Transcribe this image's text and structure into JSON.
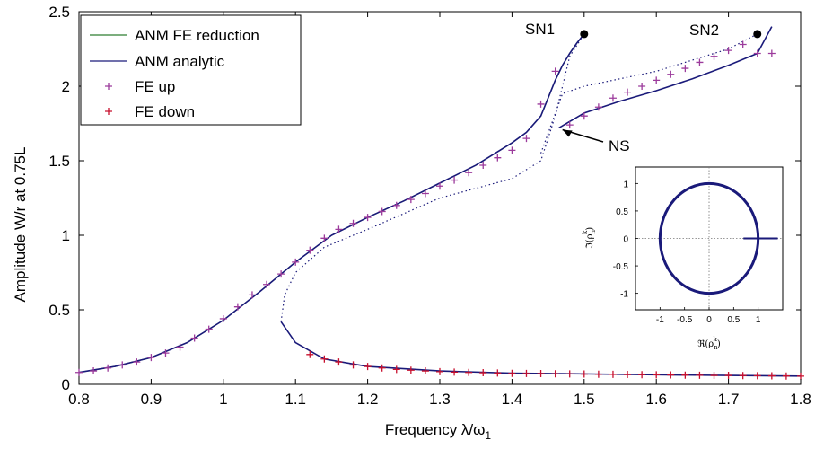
{
  "chart_data": {
    "type": "line",
    "xlabel": "Frequency λ/ω",
    "xlabel_sub": "1",
    "ylabel": "Amplitude W/r at 0.75L",
    "xlim": [
      0.8,
      1.8
    ],
    "ylim": [
      0,
      2.5
    ],
    "x_ticks": [
      "0.8",
      "0.9",
      "1",
      "1.1",
      "1.2",
      "1.3",
      "1.4",
      "1.5",
      "1.6",
      "1.7",
      "1.8"
    ],
    "y_ticks": [
      "0",
      "0.5",
      "1",
      "1.5",
      "2",
      "2.5"
    ],
    "legend_position": "top-left",
    "colors": {
      "fe_reduction": "#2e7d32",
      "analytic": "#1a1a7a",
      "fe_up": "#9c3b9c",
      "fe_down": "#c8102e"
    },
    "series": [
      {
        "name": "ANM FE reduction",
        "style": "solid-line",
        "x": [
          0.8,
          0.85,
          0.9,
          0.95,
          1.0,
          1.05,
          1.1,
          1.15,
          1.2,
          1.25,
          1.3,
          1.35,
          1.4,
          1.42,
          1.44,
          1.45,
          1.46,
          1.47,
          1.48,
          1.49,
          1.5
        ],
        "y": [
          0.08,
          0.12,
          0.18,
          0.28,
          0.43,
          0.62,
          0.82,
          1.0,
          1.12,
          1.23,
          1.35,
          1.47,
          1.62,
          1.69,
          1.8,
          1.92,
          2.04,
          2.14,
          2.22,
          2.29,
          2.35
        ]
      },
      {
        "name": "ANM analytic",
        "style": "solid-line",
        "x": [
          0.8,
          0.85,
          0.9,
          0.95,
          1.0,
          1.05,
          1.1,
          1.15,
          1.2,
          1.25,
          1.3,
          1.35,
          1.4,
          1.42,
          1.44,
          1.45,
          1.46,
          1.47,
          1.48,
          1.49,
          1.5
        ],
        "y": [
          0.08,
          0.12,
          0.18,
          0.28,
          0.43,
          0.62,
          0.82,
          1.0,
          1.12,
          1.23,
          1.35,
          1.47,
          1.62,
          1.69,
          1.8,
          1.92,
          2.04,
          2.14,
          2.22,
          2.29,
          2.35
        ]
      },
      {
        "name": "FE up",
        "style": "plus-marker",
        "x": [
          0.8,
          0.82,
          0.84,
          0.86,
          0.88,
          0.9,
          0.92,
          0.94,
          0.96,
          0.98,
          1.0,
          1.02,
          1.04,
          1.06,
          1.08,
          1.1,
          1.12,
          1.14,
          1.16,
          1.18,
          1.2,
          1.22,
          1.24,
          1.26,
          1.28,
          1.3,
          1.32,
          1.34,
          1.36,
          1.38,
          1.4,
          1.42,
          1.44,
          1.46,
          1.48,
          1.5,
          1.52,
          1.54,
          1.56,
          1.58,
          1.6,
          1.62,
          1.64,
          1.66,
          1.68,
          1.7,
          1.72,
          1.74,
          1.76
        ],
        "y": [
          0.08,
          0.09,
          0.11,
          0.13,
          0.15,
          0.18,
          0.21,
          0.25,
          0.31,
          0.37,
          0.44,
          0.52,
          0.6,
          0.67,
          0.74,
          0.82,
          0.9,
          0.98,
          1.04,
          1.08,
          1.12,
          1.16,
          1.2,
          1.24,
          1.28,
          1.33,
          1.37,
          1.42,
          1.47,
          1.52,
          1.57,
          1.65,
          1.88,
          2.1,
          1.74,
          1.8,
          1.86,
          1.92,
          1.96,
          2.0,
          2.04,
          2.08,
          2.12,
          2.16,
          2.2,
          2.24,
          2.28,
          2.22,
          2.22
        ]
      },
      {
        "name": "FE down",
        "style": "plus-marker",
        "x": [
          1.12,
          1.14,
          1.16,
          1.18,
          1.2,
          1.22,
          1.24,
          1.26,
          1.28,
          1.3,
          1.32,
          1.34,
          1.36,
          1.38,
          1.4,
          1.42,
          1.44,
          1.46,
          1.48,
          1.5,
          1.52,
          1.54,
          1.56,
          1.58,
          1.6,
          1.62,
          1.64,
          1.66,
          1.68,
          1.7,
          1.72,
          1.74,
          1.76,
          1.78,
          1.8
        ],
        "y": [
          0.2,
          0.17,
          0.15,
          0.13,
          0.12,
          0.11,
          0.1,
          0.095,
          0.09,
          0.085,
          0.082,
          0.08,
          0.078,
          0.076,
          0.074,
          0.073,
          0.072,
          0.071,
          0.07,
          0.069,
          0.068,
          0.067,
          0.066,
          0.065,
          0.064,
          0.063,
          0.062,
          0.061,
          0.06,
          0.06,
          0.059,
          0.058,
          0.057,
          0.056,
          0.055
        ]
      }
    ],
    "annotations": [
      {
        "label": "SN1",
        "x": 1.5,
        "y": 2.35
      },
      {
        "label": "SN2",
        "x": 1.74,
        "y": 2.35
      },
      {
        "label": "NS",
        "x": 1.465,
        "y": 1.72
      }
    ],
    "inset": {
      "xlim": [
        -1.5,
        1.5
      ],
      "ylim": [
        -1.3,
        1.3
      ],
      "x_ticks": [
        "-1",
        "-0.5",
        "0",
        "0.5",
        "1"
      ],
      "y_ticks": [
        "1",
        "0.5",
        "0",
        "-0.5",
        "-1"
      ],
      "xlabel": "ℜ(ρ",
      "xlabel_tail": ")",
      "ylabel": "ℑ(ρ",
      "ylabel_tail": ")",
      "sup": "k",
      "sub": "n",
      "circle_radius": 1,
      "segment": {
        "x": [
          0.7,
          1.4
        ],
        "y": [
          0,
          0
        ]
      }
    }
  }
}
